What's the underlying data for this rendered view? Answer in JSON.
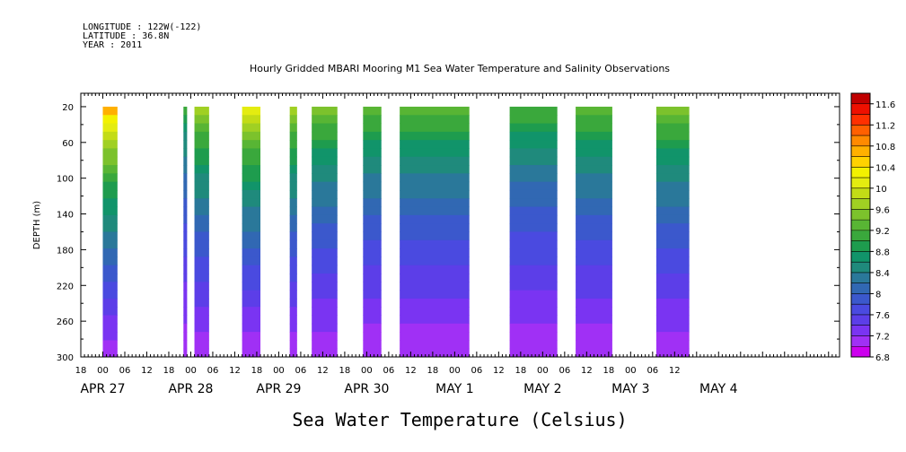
{
  "header": {
    "longitude": "LONGITUDE : 122W(-122)",
    "latitude": "LATITUDE : 36.8N",
    "year": "YEAR : 2011"
  },
  "chart_data": {
    "type": "heatmap",
    "title": "Hourly Gridded MBARI Mooring M1 Sea Water Temperature and Salinity Observations",
    "xlabel": "Sea Water Temperature (Celsius)",
    "ylabel": "DEPTH (m)",
    "x_axis": {
      "unit": "hours since 2011-04-26 18:00",
      "range": [
        0,
        207
      ],
      "hour_ticks": [
        {
          "h": 0,
          "label": "18"
        },
        {
          "h": 6,
          "label": "00"
        },
        {
          "h": 12,
          "label": "06"
        },
        {
          "h": 18,
          "label": "12"
        },
        {
          "h": 24,
          "label": "18"
        },
        {
          "h": 30,
          "label": "00"
        },
        {
          "h": 36,
          "label": "06"
        },
        {
          "h": 42,
          "label": "12"
        },
        {
          "h": 48,
          "label": "18"
        },
        {
          "h": 54,
          "label": "00"
        },
        {
          "h": 60,
          "label": "06"
        },
        {
          "h": 66,
          "label": "12"
        },
        {
          "h": 72,
          "label": "18"
        },
        {
          "h": 78,
          "label": "00"
        },
        {
          "h": 84,
          "label": "06"
        },
        {
          "h": 90,
          "label": "12"
        },
        {
          "h": 96,
          "label": "18"
        },
        {
          "h": 102,
          "label": "00"
        },
        {
          "h": 108,
          "label": "06"
        },
        {
          "h": 114,
          "label": "12"
        },
        {
          "h": 120,
          "label": "18"
        },
        {
          "h": 126,
          "label": "00"
        },
        {
          "h": 132,
          "label": "06"
        },
        {
          "h": 138,
          "label": "12"
        },
        {
          "h": 144,
          "label": "18"
        },
        {
          "h": 150,
          "label": "00"
        },
        {
          "h": 156,
          "label": "06"
        },
        {
          "h": 162,
          "label": "12"
        }
      ],
      "date_labels": [
        {
          "h": 6,
          "label": "APR 27"
        },
        {
          "h": 30,
          "label": "APR 28"
        },
        {
          "h": 54,
          "label": "APR 29"
        },
        {
          "h": 78,
          "label": "APR 30"
        },
        {
          "h": 102,
          "label": "MAY  1"
        },
        {
          "h": 126,
          "label": "MAY  2"
        },
        {
          "h": 150,
          "label": "MAY  3"
        },
        {
          "h": 174,
          "label": "MAY  4"
        }
      ]
    },
    "y_axis": {
      "range": [
        300,
        5
      ],
      "ticks": [
        20,
        60,
        100,
        140,
        180,
        220,
        260,
        300
      ]
    },
    "colorbar": {
      "levels": [
        6.8,
        7.0,
        7.2,
        7.4,
        7.6,
        7.8,
        8.0,
        8.2,
        8.4,
        8.6,
        8.8,
        9.0,
        9.2,
        9.4,
        9.6,
        9.8,
        10.0,
        10.2,
        10.4,
        10.6,
        10.8,
        11.0,
        11.2,
        11.4,
        11.6,
        11.8
      ],
      "labels": [
        6.8,
        7.2,
        7.6,
        8,
        8.4,
        8.8,
        9.2,
        9.6,
        10,
        10.4,
        10.8,
        11.2,
        11.6
      ],
      "colors": [
        "#cc00ee",
        "#a030f5",
        "#7a34f2",
        "#5c3ee8",
        "#4a4ae0",
        "#3b58cc",
        "#3168b3",
        "#2a789a",
        "#1f8a7c",
        "#11946a",
        "#1e9c4e",
        "#3aa83c",
        "#58b534",
        "#7cc22c",
        "#a0d023",
        "#c3dc16",
        "#e4ec10",
        "#f3f100",
        "#ffd200",
        "#ffb000",
        "#ff8a00",
        "#ff6000",
        "#ff3000",
        "#ee1000",
        "#c00000"
      ]
    },
    "data_blocks": [
      {
        "start": 6,
        "end": 10,
        "surface": 11.0
      },
      {
        "start": 28,
        "end": 29,
        "surface": 9.2
      },
      {
        "start": 31,
        "end": 35,
        "surface": 10.0
      },
      {
        "start": 44,
        "end": 49,
        "surface": 10.4
      },
      {
        "start": 57,
        "end": 59,
        "surface": 10.0
      },
      {
        "start": 63,
        "end": 70,
        "surface": 9.8
      },
      {
        "start": 77,
        "end": 82,
        "surface": 9.6
      },
      {
        "start": 87,
        "end": 106,
        "surface": 9.6
      },
      {
        "start": 117,
        "end": 130,
        "surface": 9.4
      },
      {
        "start": 135,
        "end": 145,
        "surface": 9.6
      },
      {
        "start": 157,
        "end": 166,
        "surface": 9.8
      }
    ],
    "bottom_temperature": 7.0,
    "grid": false,
    "legend": "right colorbar"
  }
}
